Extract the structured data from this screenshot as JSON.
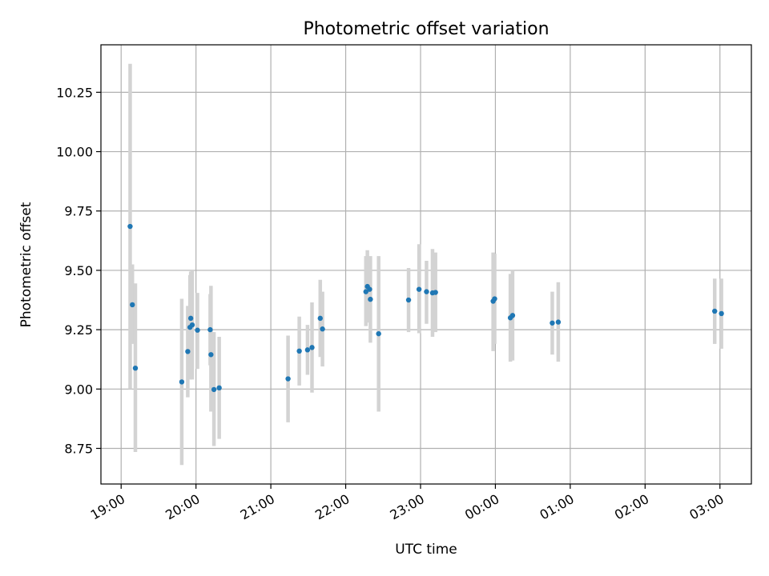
{
  "chart_data": {
    "type": "scatter",
    "title": "Photometric offset variation",
    "xlabel": "UTC time",
    "ylabel": "Photometric offset",
    "x_unit": "hours since 19:00 UTC",
    "xlim": [
      -0.27,
      8.42
    ],
    "ylim": [
      8.6,
      10.45
    ],
    "x_ticks": [
      {
        "value": 0,
        "label": "19:00"
      },
      {
        "value": 1,
        "label": "20:00"
      },
      {
        "value": 2,
        "label": "21:00"
      },
      {
        "value": 3,
        "label": "22:00"
      },
      {
        "value": 4,
        "label": "23:00"
      },
      {
        "value": 5,
        "label": "00:00"
      },
      {
        "value": 6,
        "label": "01:00"
      },
      {
        "value": 7,
        "label": "02:00"
      },
      {
        "value": 8,
        "label": "03:00"
      }
    ],
    "y_ticks": [
      {
        "value": 8.75,
        "label": "8.75"
      },
      {
        "value": 9.0,
        "label": "9.00"
      },
      {
        "value": 9.25,
        "label": "9.25"
      },
      {
        "value": 9.5,
        "label": "9.50"
      },
      {
        "value": 9.75,
        "label": "9.75"
      },
      {
        "value": 10.0,
        "label": "10.00"
      },
      {
        "value": 10.25,
        "label": "10.25"
      }
    ],
    "grid": true,
    "point_color": "#1f77b4",
    "errorbar_color": "#d3d3d3",
    "points": [
      {
        "x": 0.12,
        "y": 9.685,
        "ylo": 9.0,
        "yhi": 10.37
      },
      {
        "x": 0.15,
        "y": 9.355,
        "ylo": 9.19,
        "yhi": 9.525
      },
      {
        "x": 0.19,
        "y": 9.088,
        "ylo": 8.735,
        "yhi": 9.445
      },
      {
        "x": 0.81,
        "y": 9.03,
        "ylo": 8.68,
        "yhi": 9.38
      },
      {
        "x": 0.89,
        "y": 9.158,
        "ylo": 8.965,
        "yhi": 9.35
      },
      {
        "x": 0.92,
        "y": 9.26,
        "ylo": 9.04,
        "yhi": 9.48
      },
      {
        "x": 0.93,
        "y": 9.298,
        "ylo": 9.1,
        "yhi": 9.495
      },
      {
        "x": 0.95,
        "y": 9.27,
        "ylo": 9.04,
        "yhi": 9.5
      },
      {
        "x": 1.02,
        "y": 9.248,
        "ylo": 9.085,
        "yhi": 9.405
      },
      {
        "x": 1.19,
        "y": 9.25,
        "ylo": 9.1,
        "yhi": 9.4
      },
      {
        "x": 1.2,
        "y": 9.145,
        "ylo": 8.905,
        "yhi": 9.435
      },
      {
        "x": 1.24,
        "y": 8.998,
        "ylo": 8.76,
        "yhi": 9.24
      },
      {
        "x": 1.31,
        "y": 9.005,
        "ylo": 8.79,
        "yhi": 9.22
      },
      {
        "x": 2.23,
        "y": 9.043,
        "ylo": 8.86,
        "yhi": 9.225
      },
      {
        "x": 2.38,
        "y": 9.16,
        "ylo": 9.015,
        "yhi": 9.305
      },
      {
        "x": 2.49,
        "y": 9.165,
        "ylo": 9.06,
        "yhi": 9.27
      },
      {
        "x": 2.55,
        "y": 9.175,
        "ylo": 8.985,
        "yhi": 9.365
      },
      {
        "x": 2.66,
        "y": 9.298,
        "ylo": 9.135,
        "yhi": 9.46
      },
      {
        "x": 2.69,
        "y": 9.253,
        "ylo": 9.095,
        "yhi": 9.41
      },
      {
        "x": 3.27,
        "y": 9.41,
        "ylo": 9.265,
        "yhi": 9.56
      },
      {
        "x": 3.29,
        "y": 9.432,
        "ylo": 9.28,
        "yhi": 9.585
      },
      {
        "x": 3.32,
        "y": 9.42,
        "ylo": 9.29,
        "yhi": 9.55
      },
      {
        "x": 3.33,
        "y": 9.378,
        "ylo": 9.195,
        "yhi": 9.56
      },
      {
        "x": 3.44,
        "y": 9.233,
        "ylo": 8.905,
        "yhi": 9.56
      },
      {
        "x": 3.84,
        "y": 9.375,
        "ylo": 9.24,
        "yhi": 9.51
      },
      {
        "x": 3.98,
        "y": 9.42,
        "ylo": 9.235,
        "yhi": 9.61
      },
      {
        "x": 4.08,
        "y": 9.41,
        "ylo": 9.275,
        "yhi": 9.54
      },
      {
        "x": 4.16,
        "y": 9.405,
        "ylo": 9.22,
        "yhi": 9.59
      },
      {
        "x": 4.2,
        "y": 9.407,
        "ylo": 9.24,
        "yhi": 9.575
      },
      {
        "x": 4.97,
        "y": 9.37,
        "ylo": 9.16,
        "yhi": 9.575
      },
      {
        "x": 4.99,
        "y": 9.38,
        "ylo": 9.19,
        "yhi": 9.57
      },
      {
        "x": 5.2,
        "y": 9.3,
        "ylo": 9.115,
        "yhi": 9.485
      },
      {
        "x": 5.23,
        "y": 9.31,
        "ylo": 9.12,
        "yhi": 9.5
      },
      {
        "x": 5.76,
        "y": 9.278,
        "ylo": 9.145,
        "yhi": 9.41
      },
      {
        "x": 5.84,
        "y": 9.282,
        "ylo": 9.115,
        "yhi": 9.45
      },
      {
        "x": 7.93,
        "y": 9.328,
        "ylo": 9.19,
        "yhi": 9.465
      },
      {
        "x": 8.02,
        "y": 9.318,
        "ylo": 9.17,
        "yhi": 9.465
      }
    ]
  }
}
